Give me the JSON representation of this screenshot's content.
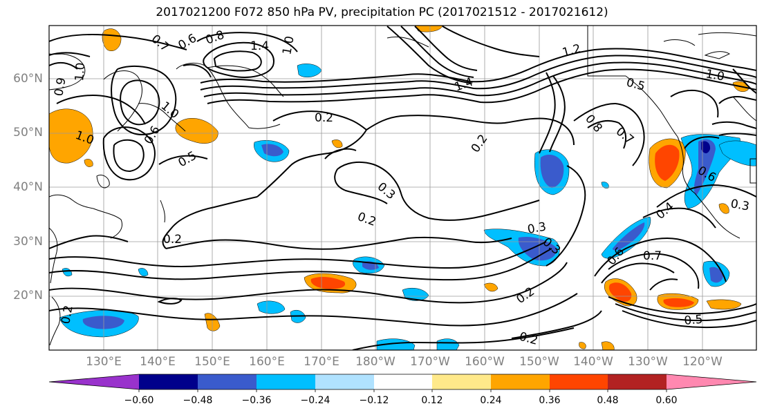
{
  "title": "2017021200 F072 850 hPa PV, precipitation PC (2017021512 - 2017021612)",
  "latitude_labels": [
    "60°N",
    "50°N",
    "40°N",
    "30°N",
    "20°N"
  ],
  "longitude_labels": [
    "130°E",
    "140°E",
    "150°E",
    "160°E",
    "170°E",
    "180°W",
    "170°W",
    "160°W",
    "150°W",
    "140°W",
    "130°W",
    "120°W"
  ],
  "colorbar": {
    "tick_labels": [
      "−0.60",
      "−0.48",
      "−0.36",
      "−0.24",
      "−0.12",
      "0.12",
      "0.24",
      "0.36",
      "0.48",
      "0.60"
    ],
    "colors": [
      "#9932cc",
      "#00008b",
      "#3a5bcc",
      "#00bfff",
      "#b0e2ff",
      "#ffffff",
      "#ffe98a",
      "#ffa500",
      "#ff4500",
      "#b22222",
      "#ff88b0"
    ]
  },
  "contour_labels": [
    "0.7",
    "0.6",
    "0.8",
    "1.4",
    "0.9",
    "1.0",
    "1.0",
    "1.0",
    "1.0",
    "0.6",
    "0.5",
    "0.2",
    "0.2",
    "0.2",
    "0.3",
    "0.2",
    "0.2",
    "0.3",
    "0.3",
    "0.2",
    "1.2",
    "1.4",
    "0.8",
    "0.7",
    "0.5",
    "1.0",
    "0.6",
    "0.4",
    "0.3",
    "0.6",
    "0.7",
    "0.5",
    "0.2"
  ]
}
